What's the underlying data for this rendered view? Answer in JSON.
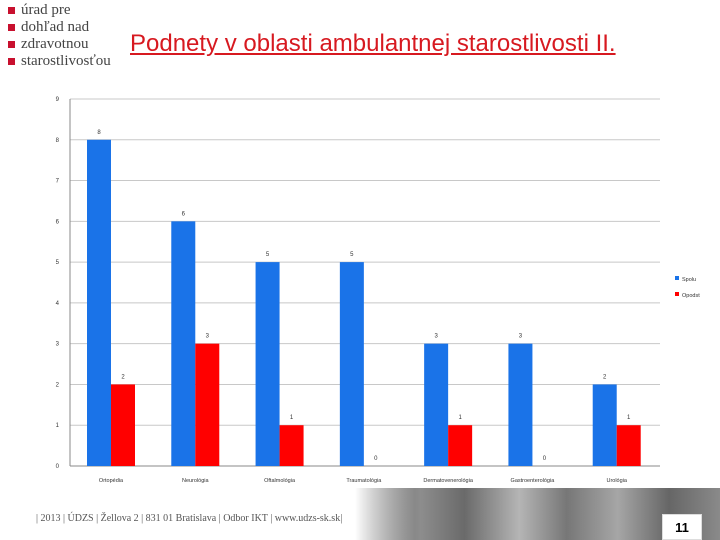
{
  "logo": {
    "lines": [
      "úrad pre",
      "dohľad nad",
      "zdravotnou",
      "starostlivosťou"
    ]
  },
  "slide": {
    "title": "Podnety v oblasti ambulantnej starostlivosti II.",
    "footer": "| 2013 | ÚDZS | Žellova 2 | 831 01 Bratislava | Odbor IKT | www.udzs-sk.sk|",
    "page_number": "11"
  },
  "colors": {
    "spolu": "#1a73e8",
    "opodst": "#ff0000",
    "logo_accent": "#c8102e",
    "title": "#d71920"
  },
  "chart_data": {
    "type": "bar",
    "categories": [
      "Ortopédia",
      "Neurológia",
      "Oftalmológia",
      "Traumatológia",
      "Dermatovenerológia",
      "Gastroenterológia",
      "Urológia"
    ],
    "series": [
      {
        "name": "Spolu",
        "values": [
          8,
          6,
          5,
          5,
          3,
          3,
          2
        ]
      },
      {
        "name": "Opodst",
        "values": [
          2,
          3,
          1,
          0,
          1,
          0,
          1
        ]
      }
    ],
    "ylim": [
      0,
      9
    ],
    "yticks": [
      0,
      1,
      2,
      3,
      4,
      5,
      6,
      7,
      8,
      9
    ],
    "grid": true,
    "legend": "right"
  }
}
